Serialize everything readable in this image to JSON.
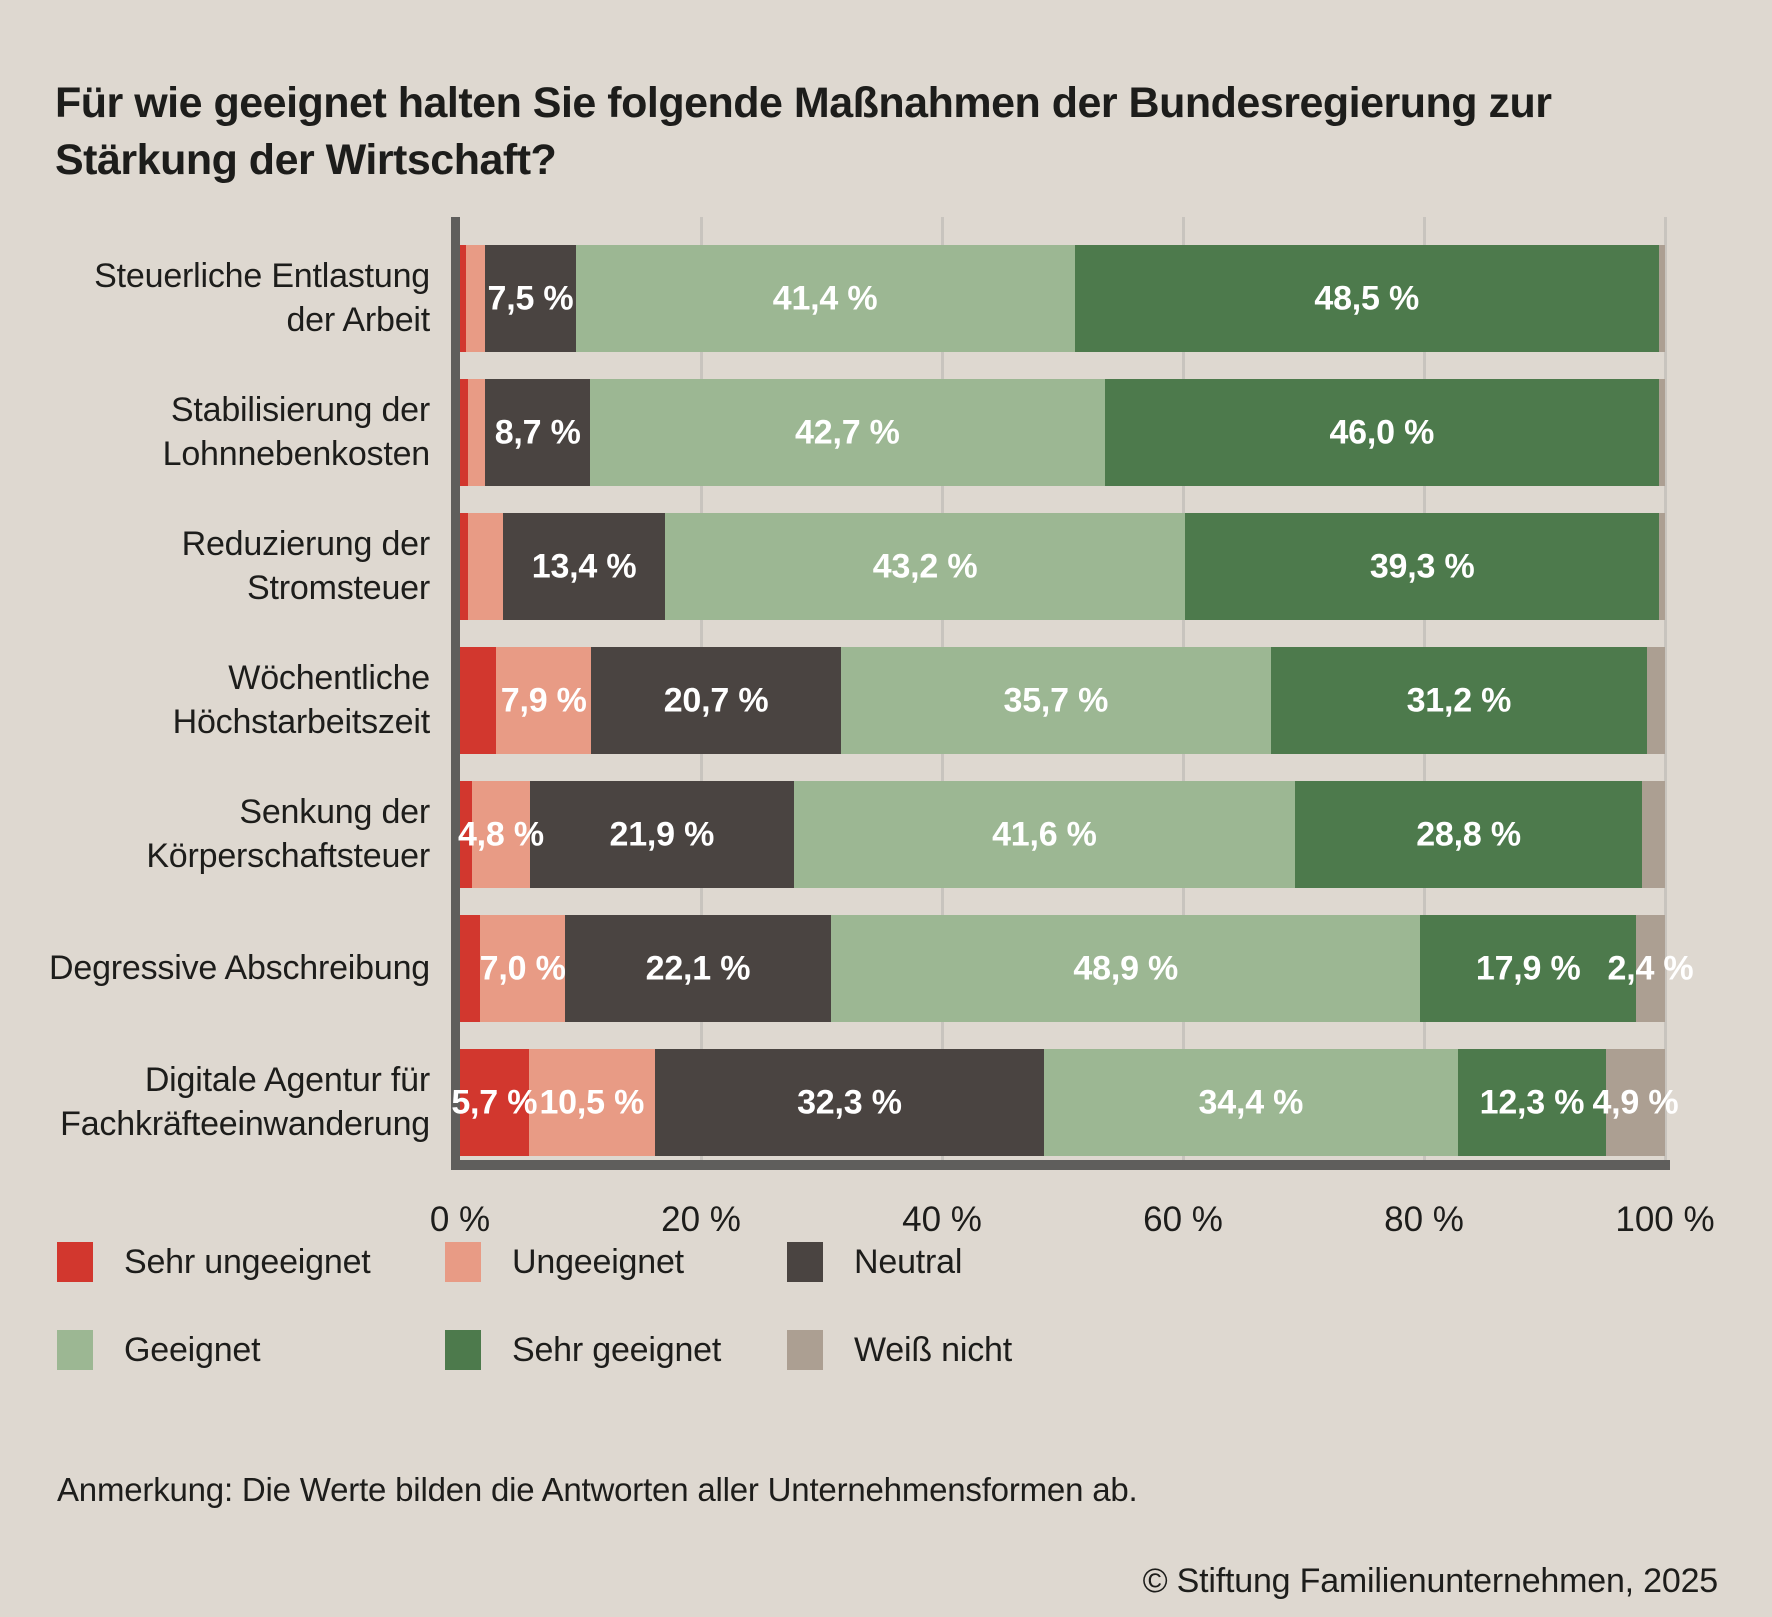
{
  "title": {
    "line1": "Für wie geeignet halten Sie folgende Maßnahmen der Bundesregierung zur",
    "line2": "Stärkung der Wirtschaft?"
  },
  "note": "Anmerkung: Die Werte bilden die Antworten aller Unternehmensformen ab.",
  "copyright": "© Stiftung Familienunternehmen, 2025",
  "colors": {
    "background": "#ded8d0",
    "axis": "#5f5e5c",
    "gridline": "#c8c4be",
    "text": "#1d1d1b",
    "bar_label": "#ffffff"
  },
  "chart_data": {
    "type": "bar",
    "orientation": "horizontal",
    "stacked": true,
    "xlim": [
      0,
      100
    ],
    "grid": true,
    "x_ticks": [
      "0 %",
      "20 %",
      "40 %",
      "60 %",
      "80 %",
      "100 %"
    ],
    "x_tick_values": [
      0,
      20,
      40,
      60,
      80,
      100
    ],
    "legend_position": "bottom",
    "series": [
      {
        "name": "Sehr ungeeignet",
        "color": "#d2372e"
      },
      {
        "name": "Ungeeignet",
        "color": "#e89b85"
      },
      {
        "name": "Neutral",
        "color": "#4a4441"
      },
      {
        "name": "Geeignet",
        "color": "#9cb793"
      },
      {
        "name": "Sehr geeignet",
        "color": "#4d7a4c"
      },
      {
        "name": "Weiß nicht",
        "color": "#ac9f92"
      }
    ],
    "rows": [
      {
        "category": "Steuerliche Entlastung der Arbeit",
        "values": [
          0.5,
          1.6,
          7.5,
          41.4,
          48.5,
          0.5
        ],
        "labels": [
          null,
          null,
          "7,5 %",
          "41,4 %",
          "48,5 %",
          null
        ]
      },
      {
        "category": "Stabilisierung der Lohnnebenkosten",
        "values": [
          0.7,
          1.4,
          8.7,
          42.7,
          46.0,
          0.5
        ],
        "labels": [
          null,
          null,
          "8,7 %",
          "42,7 %",
          "46,0 %",
          null
        ]
      },
      {
        "category": "Reduzierung der Stromsteuer",
        "values": [
          0.7,
          2.9,
          13.4,
          43.2,
          39.3,
          0.5
        ],
        "labels": [
          null,
          null,
          "13,4 %",
          "43,2 %",
          "39,3 %",
          null
        ]
      },
      {
        "category": "Wöchentliche Höchstarbeitszeit",
        "values": [
          3.0,
          7.9,
          20.7,
          35.7,
          31.2,
          1.5
        ],
        "labels": [
          null,
          "7,9 %",
          "20,7 %",
          "35,7 %",
          "31,2 %",
          null
        ]
      },
      {
        "category": "Senkung der Körperschaftsteuer",
        "values": [
          1.0,
          4.8,
          21.9,
          41.6,
          28.8,
          1.9
        ],
        "labels": [
          null,
          "4,8 %",
          "21,9 %",
          "41,6 %",
          "28,8 %",
          null
        ]
      },
      {
        "category": "Degressive Abschreibung",
        "values": [
          1.7,
          7.0,
          22.1,
          48.9,
          17.9,
          2.4
        ],
        "labels": [
          null,
          "7,0 %",
          "22,1 %",
          "48,9 %",
          "17,9 %",
          "2,4 %"
        ]
      },
      {
        "category": "Digitale Agentur für Fachkräfteeinwanderung",
        "values": [
          5.7,
          10.5,
          32.3,
          34.4,
          12.3,
          4.9
        ],
        "labels": [
          "5,7 %",
          "10,5 %",
          "32,3 %",
          "34,4 %",
          "12,3 %",
          "4,9 %"
        ]
      }
    ],
    "legend_layout": {
      "row_tops": [
        1242,
        1330
      ],
      "col_lefts": [
        57,
        445,
        787
      ],
      "items_per_row": 3
    }
  }
}
